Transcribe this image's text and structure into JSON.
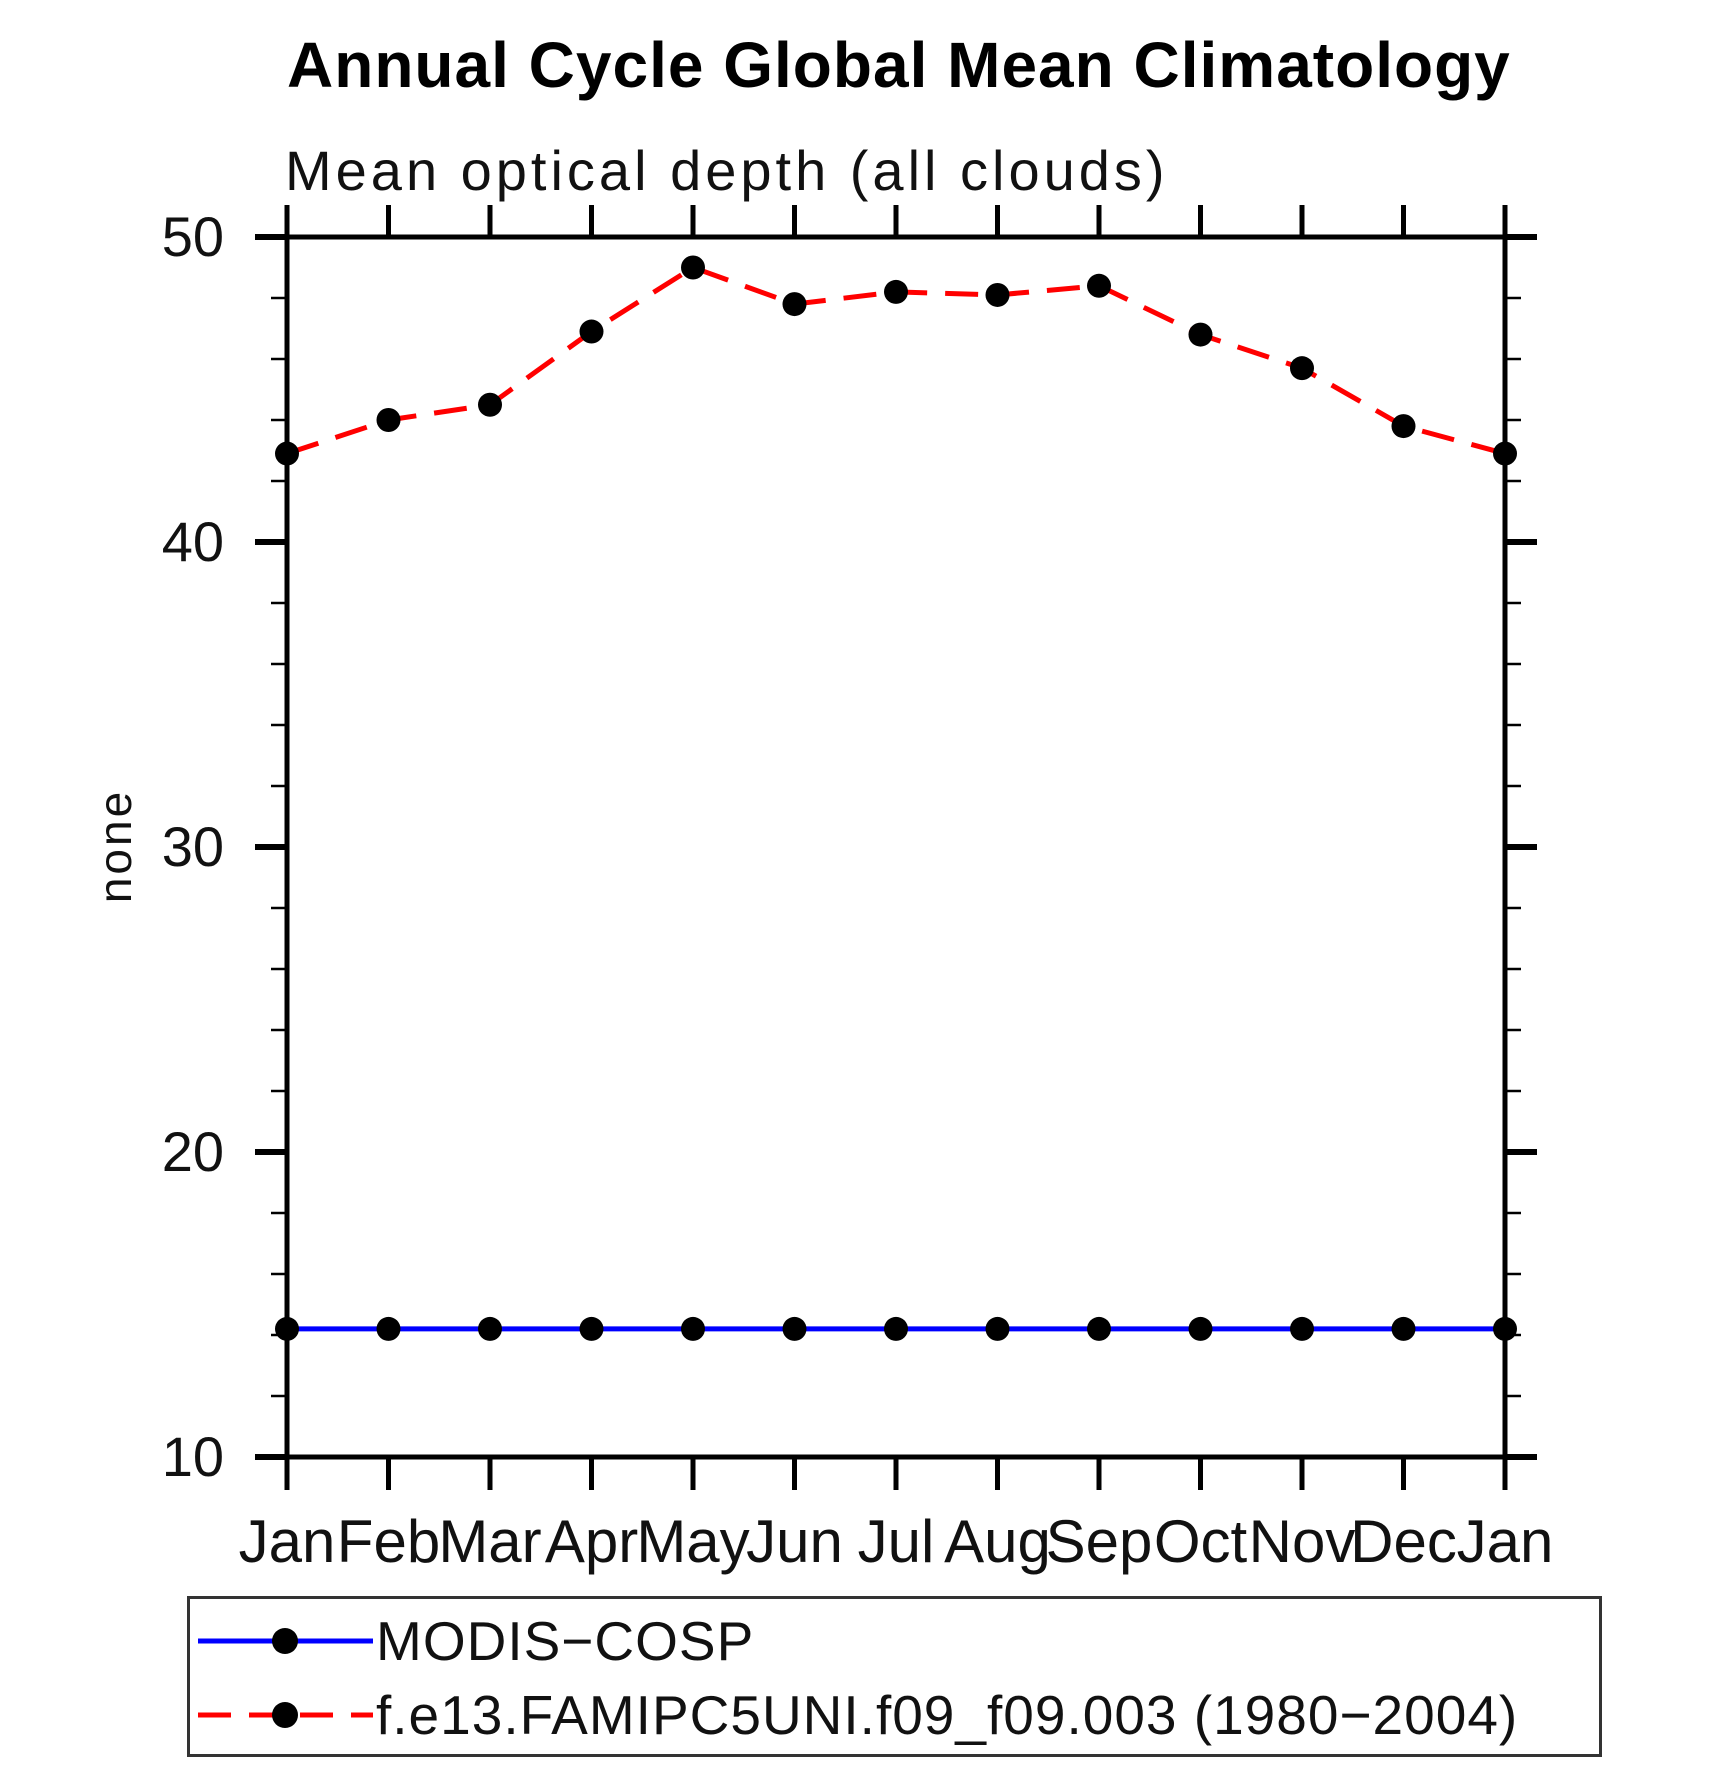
{
  "page": {
    "background": "#ffffff"
  },
  "chart_data": {
    "type": "line",
    "title": "Annual Cycle Global Mean Climatology",
    "subtitle": "Mean optical depth (all clouds)",
    "ylabel": "none",
    "xlabel": "",
    "categories": [
      "Jan",
      "Feb",
      "Mar",
      "Apr",
      "May",
      "Jun",
      "Jul",
      "Aug",
      "Sep",
      "Oct",
      "Nov",
      "Dec",
      "Jan"
    ],
    "ylim": [
      10,
      50
    ],
    "y_major_ticks": [
      50,
      40,
      30,
      20,
      10
    ],
    "y_minor_step": 2,
    "grid": false,
    "legend_position": "bottom-left",
    "axis_color": "#000000",
    "marker_color": "#000000",
    "series": [
      {
        "name": "MODIS−COSP",
        "color": "#0000ff",
        "line_style": "solid",
        "marker": "filled-circle",
        "values": [
          14.2,
          14.2,
          14.2,
          14.2,
          14.2,
          14.2,
          14.2,
          14.2,
          14.2,
          14.2,
          14.2,
          14.2,
          14.2
        ]
      },
      {
        "name": "f.e13.FAMIPC5UNI.f09_f09.003 (1980−2004)",
        "color": "#ff0000",
        "line_style": "dashed",
        "marker": "filled-circle",
        "values": [
          42.9,
          44.0,
          44.5,
          46.9,
          49.0,
          47.8,
          48.2,
          48.1,
          48.4,
          46.8,
          45.7,
          43.8,
          42.9
        ]
      }
    ]
  }
}
